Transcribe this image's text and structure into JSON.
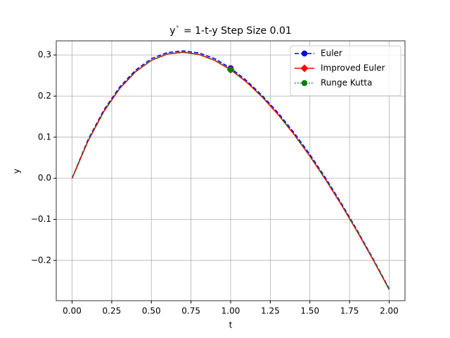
{
  "chart_data": {
    "type": "line",
    "title": "y` = 1-t-y Step Size 0.01",
    "xlabel": "t",
    "ylabel": "y",
    "x": [
      0,
      0.1,
      0.2,
      0.3,
      0.4,
      0.5,
      0.6,
      0.7,
      0.8,
      0.9,
      1.0,
      1.1,
      1.2,
      1.3,
      1.4,
      1.5,
      1.6,
      1.7,
      1.8,
      1.9,
      2.0
    ],
    "series": [
      {
        "name": "Euler",
        "color": "#0000ff",
        "linestyle": "dashed",
        "marker": "circle",
        "marker_x": 1.0,
        "values": [
          0,
          0.0935,
          0.166,
          0.222,
          0.263,
          0.291,
          0.306,
          0.31,
          0.305,
          0.291,
          0.268,
          0.238,
          0.201,
          0.159,
          0.111,
          0.058,
          0.0,
          -0.062,
          -0.128,
          -0.197,
          -0.269
        ]
      },
      {
        "name": "Improved Euler",
        "color": "#ff0000",
        "linestyle": "solid",
        "marker": "diamond",
        "marker_x": 1.0,
        "values": [
          0,
          0.0903,
          0.1625,
          0.2184,
          0.2594,
          0.2869,
          0.3024,
          0.3068,
          0.3013,
          0.2869,
          0.2642,
          0.2343,
          0.1976,
          0.1549,
          0.1068,
          0.0537,
          -0.0038,
          -0.0654,
          -0.1306,
          -0.1991,
          -0.2707
        ]
      },
      {
        "name": "Runge Kutta",
        "color": "#008000",
        "linestyle": "dotted",
        "marker": "circle",
        "marker_x": 1.0,
        "values": [
          0,
          0.0903,
          0.1625,
          0.2184,
          0.2594,
          0.2869,
          0.3024,
          0.3068,
          0.3013,
          0.2869,
          0.2642,
          0.2343,
          0.1976,
          0.1549,
          0.1068,
          0.0537,
          -0.0038,
          -0.0654,
          -0.1306,
          -0.1991,
          -0.2707
        ]
      }
    ],
    "xlim": [
      -0.1,
      2.1
    ],
    "ylim": [
      -0.298,
      0.3345
    ],
    "xticks": [
      {
        "value": 0,
        "label": "0.00"
      },
      {
        "value": 0.25,
        "label": "0.25"
      },
      {
        "value": 0.5,
        "label": "0.50"
      },
      {
        "value": 0.75,
        "label": "0.75"
      },
      {
        "value": 1,
        "label": "1.00"
      },
      {
        "value": 1.25,
        "label": "1.25"
      },
      {
        "value": 1.5,
        "label": "1.50"
      },
      {
        "value": 1.75,
        "label": "1.75"
      },
      {
        "value": 2,
        "label": "2.00"
      }
    ],
    "yticks": [
      {
        "value": -0.2,
        "label": "−0.2"
      },
      {
        "value": -0.1,
        "label": "−0.1"
      },
      {
        "value": 0,
        "label": "0.0"
      },
      0.1,
      0.2,
      0.3
    ],
    "grid": true,
    "legend": "upper right"
  }
}
